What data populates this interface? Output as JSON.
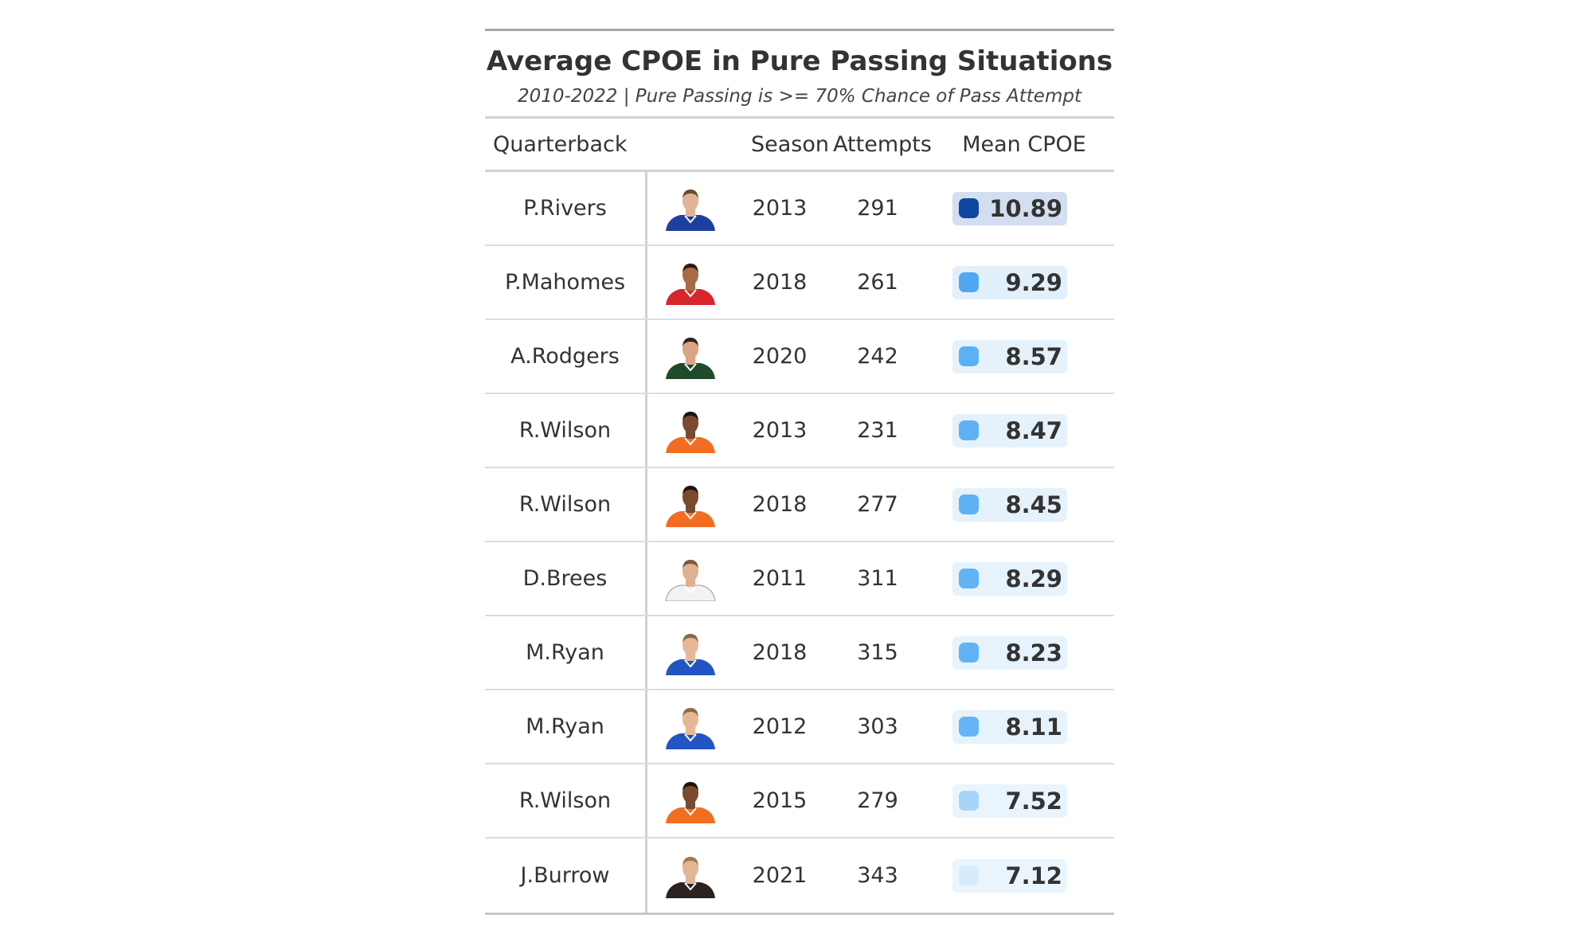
{
  "chart_data": {
    "type": "table",
    "title": "Average CPOE in Pure Passing Situations",
    "subtitle": "2010-2022 | Pure Passing is >= 70% Chance of Pass Attempt",
    "columns": [
      "Quarterback",
      "Season",
      "Attempts",
      "Mean CPOE"
    ],
    "rows": [
      {
        "quarterback": "P.Rivers",
        "season": "2013",
        "attempts": "291",
        "mean_cpoe": "10.89",
        "value": 10.89,
        "jersey_color": "#1f3fa0",
        "skin_color": "#e2b394",
        "hair_color": "#6b4a2e"
      },
      {
        "quarterback": "P.Mahomes",
        "season": "2018",
        "attempts": "261",
        "mean_cpoe": "9.29",
        "value": 9.29,
        "jersey_color": "#d7262c",
        "skin_color": "#a86b45",
        "hair_color": "#2a1c14"
      },
      {
        "quarterback": "A.Rodgers",
        "season": "2020",
        "attempts": "242",
        "mean_cpoe": "8.57",
        "value": 8.57,
        "jersey_color": "#1f4a2c",
        "skin_color": "#d9a585",
        "hair_color": "#2b2420"
      },
      {
        "quarterback": "R.Wilson",
        "season": "2013",
        "attempts": "231",
        "mean_cpoe": "8.47",
        "value": 8.47,
        "jersey_color": "#f26d21",
        "skin_color": "#7a4a2e",
        "hair_color": "#1c1410"
      },
      {
        "quarterback": "R.Wilson",
        "season": "2018",
        "attempts": "277",
        "mean_cpoe": "8.45",
        "value": 8.45,
        "jersey_color": "#f26d21",
        "skin_color": "#7a4a2e",
        "hair_color": "#1c1410"
      },
      {
        "quarterback": "D.Brees",
        "season": "2011",
        "attempts": "311",
        "mean_cpoe": "8.29",
        "value": 8.29,
        "jersey_color": "#f2f2f2",
        "skin_color": "#e0b190",
        "hair_color": "#7a5a3c"
      },
      {
        "quarterback": "M.Ryan",
        "season": "2018",
        "attempts": "315",
        "mean_cpoe": "8.23",
        "value": 8.23,
        "jersey_color": "#2354c4",
        "skin_color": "#e6b898",
        "hair_color": "#8a6a4a"
      },
      {
        "quarterback": "M.Ryan",
        "season": "2012",
        "attempts": "303",
        "mean_cpoe": "8.11",
        "value": 8.11,
        "jersey_color": "#2354c4",
        "skin_color": "#e6b898",
        "hair_color": "#8a6a4a"
      },
      {
        "quarterback": "R.Wilson",
        "season": "2015",
        "attempts": "279",
        "mean_cpoe": "7.52",
        "value": 7.52,
        "jersey_color": "#f26d21",
        "skin_color": "#7a4a2e",
        "hair_color": "#1c1410"
      },
      {
        "quarterback": "J.Burrow",
        "season": "2021",
        "attempts": "343",
        "mean_cpoe": "7.12",
        "value": 7.12,
        "jersey_color": "#2a2320",
        "skin_color": "#e4b595",
        "hair_color": "#a07a52"
      }
    ],
    "color_scale": {
      "low": "#d6ecfc",
      "mid": "#64b5f6",
      "high": "#1e88e5",
      "max": "#0d47a1"
    }
  }
}
